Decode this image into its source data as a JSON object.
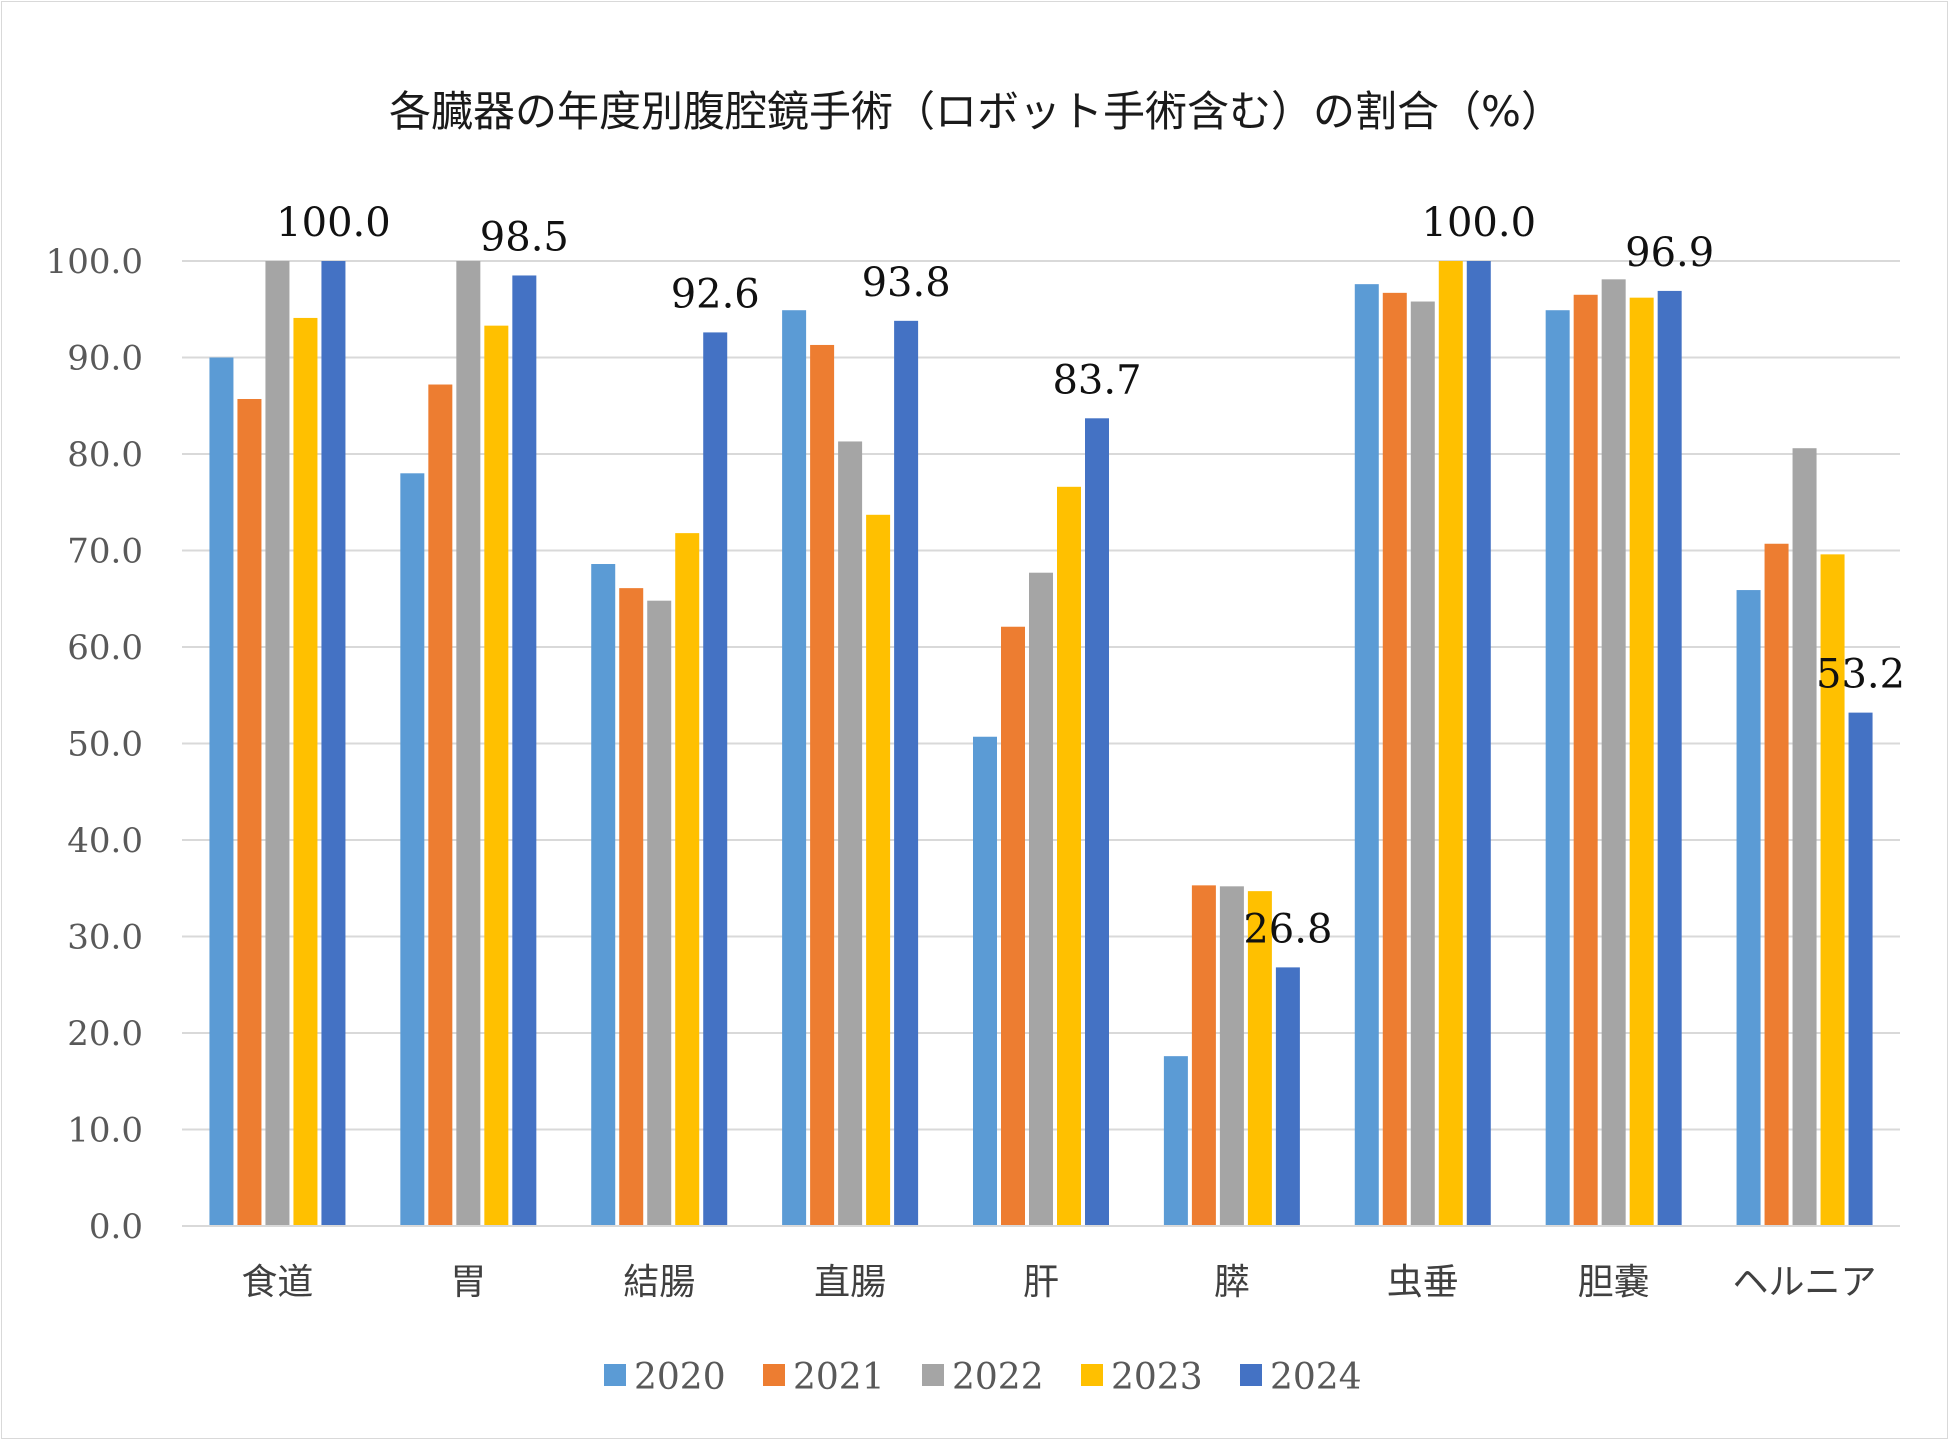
{
  "chart_data": {
    "type": "bar",
    "title": "各臓器の年度別腹腔鏡手術（ロボット手術含む）の割合（%）",
    "xlabel": "",
    "ylabel": "",
    "ylim": [
      0,
      100
    ],
    "yticks": [
      "0.0",
      "10.0",
      "20.0",
      "30.0",
      "40.0",
      "50.0",
      "60.0",
      "70.0",
      "80.0",
      "90.0",
      "100.0"
    ],
    "grid": true,
    "legend_position": "bottom",
    "categories": [
      "食道",
      "胃",
      "結腸",
      "直腸",
      "肝",
      "膵",
      "虫垂",
      "胆嚢",
      "ヘルニア"
    ],
    "series": [
      {
        "name": "2020",
        "color": "#5b9bd5",
        "values": [
          90.0,
          78.0,
          68.6,
          94.9,
          50.7,
          17.6,
          97.6,
          94.9,
          65.9
        ]
      },
      {
        "name": "2021",
        "color": "#ed7d31",
        "values": [
          85.7,
          87.2,
          66.1,
          91.3,
          62.1,
          35.3,
          96.7,
          96.5,
          70.7
        ]
      },
      {
        "name": "2022",
        "color": "#a5a5a5",
        "values": [
          100.0,
          100.0,
          64.8,
          81.3,
          67.7,
          35.2,
          95.8,
          98.1,
          80.6
        ]
      },
      {
        "name": "2023",
        "color": "#ffc000",
        "values": [
          94.1,
          93.3,
          71.8,
          73.7,
          76.6,
          34.7,
          100.0,
          96.2,
          69.6
        ]
      },
      {
        "name": "2024",
        "color": "#4472c4",
        "values": [
          100.0,
          98.5,
          92.6,
          93.8,
          83.7,
          26.8,
          100.0,
          96.9,
          53.2
        ]
      }
    ],
    "data_labels": {
      "series": "2024",
      "labels": [
        "100.0",
        "98.5",
        "92.6",
        "93.8",
        "83.7",
        "26.8",
        "100.0",
        "96.9",
        "53.2"
      ]
    }
  }
}
